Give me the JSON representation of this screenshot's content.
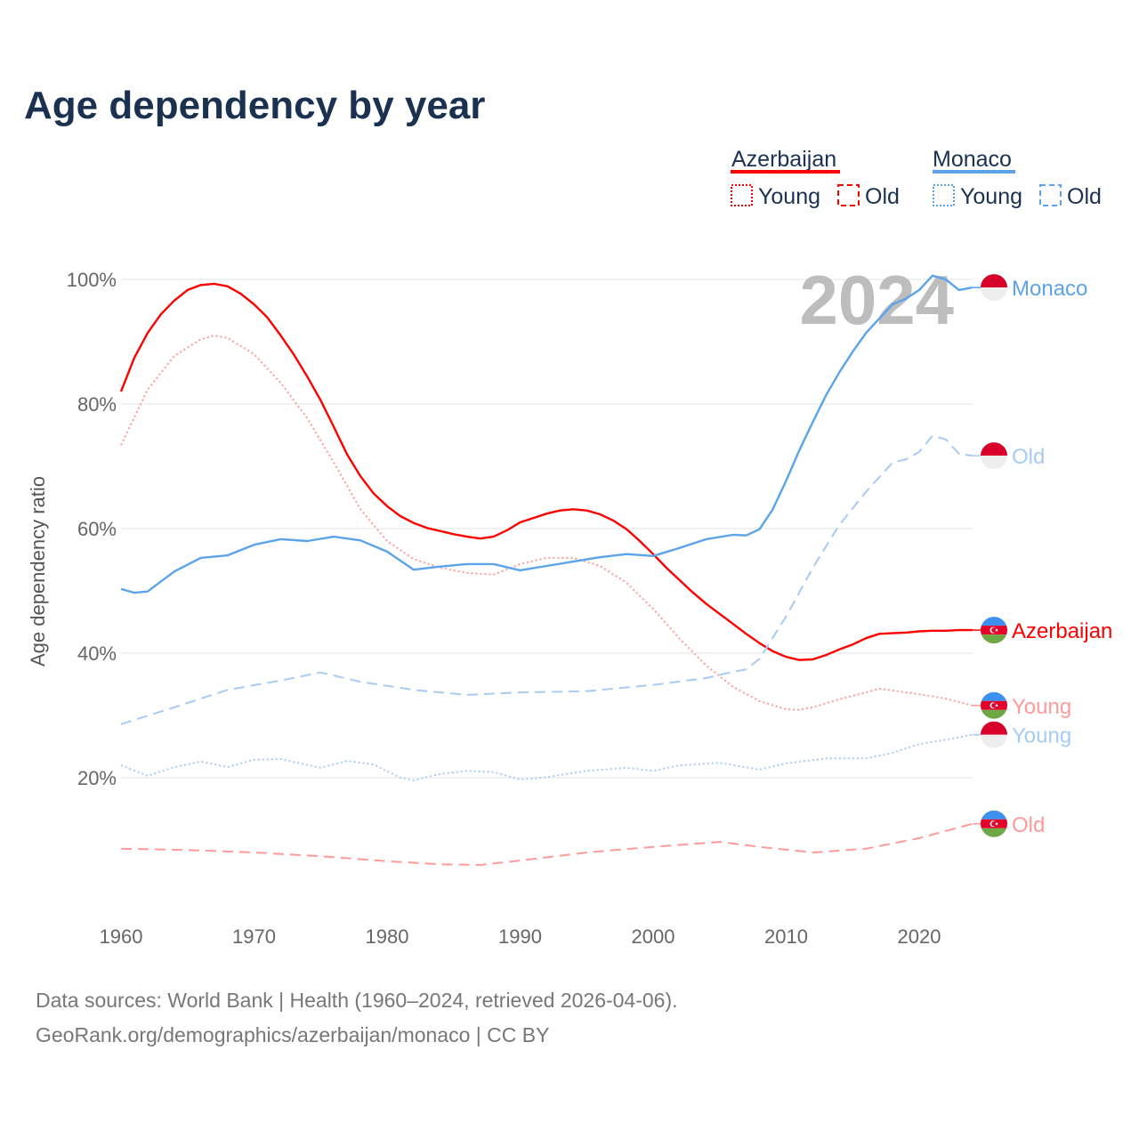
{
  "chart_data": {
    "type": "line",
    "title": "Age dependency by year",
    "xlabel": "",
    "ylabel": "Age dependency ratio",
    "xlim": [
      1960,
      2024
    ],
    "ylim": [
      0,
      100
    ],
    "x_ticks": [
      "1960",
      "1970",
      "1980",
      "1990",
      "2000",
      "2010",
      "2020"
    ],
    "y_ticks": [
      "20%",
      "40%",
      "60%",
      "80%",
      "100%"
    ],
    "year_watermark": "2024",
    "legend": {
      "placement": "top-right",
      "groups": [
        {
          "name": "Azerbaijan",
          "color": "#ff0000",
          "items": [
            "Young",
            "Old"
          ]
        },
        {
          "name": "Monaco",
          "color": "#5ba3ea",
          "items": [
            "Young",
            "Old"
          ]
        }
      ]
    },
    "series": [
      {
        "name": "Azerbaijan",
        "label": "Azerbaijan",
        "country": "az",
        "color": "#ff0000",
        "style": "solid",
        "points": [
          [
            1960,
            82
          ],
          [
            1961,
            87.4
          ],
          [
            1962,
            91.4
          ],
          [
            1963,
            94.4
          ],
          [
            1964,
            96.6
          ],
          [
            1965,
            98.3
          ],
          [
            1966,
            99.1
          ],
          [
            1967,
            99.3
          ],
          [
            1968,
            98.9
          ],
          [
            1969,
            97.7
          ],
          [
            1970,
            96
          ],
          [
            1971,
            93.9
          ],
          [
            1972,
            91
          ],
          [
            1973,
            87.9
          ],
          [
            1974,
            84.4
          ],
          [
            1975,
            80.6
          ],
          [
            1976,
            76.3
          ],
          [
            1977,
            71.9
          ],
          [
            1978,
            68.4
          ],
          [
            1979,
            65.6
          ],
          [
            1980,
            63.6
          ],
          [
            1981,
            62
          ],
          [
            1982,
            60.9
          ],
          [
            1983,
            60.1
          ],
          [
            1984,
            59.6
          ],
          [
            1985,
            59.1
          ],
          [
            1986,
            58.7
          ],
          [
            1987,
            58.4
          ],
          [
            1988,
            58.7
          ],
          [
            1989,
            59.7
          ],
          [
            1990,
            61
          ],
          [
            1991,
            61.7
          ],
          [
            1992,
            62.4
          ],
          [
            1993,
            62.9
          ],
          [
            1994,
            63.1
          ],
          [
            1995,
            62.9
          ],
          [
            1996,
            62.3
          ],
          [
            1997,
            61.3
          ],
          [
            1998,
            59.9
          ],
          [
            1999,
            58
          ],
          [
            2000,
            55.9
          ],
          [
            2001,
            53.7
          ],
          [
            2002,
            51.7
          ],
          [
            2003,
            49.7
          ],
          [
            2004,
            47.9
          ],
          [
            2005,
            46.3
          ],
          [
            2006,
            44.7
          ],
          [
            2007,
            43.1
          ],
          [
            2008,
            41.6
          ],
          [
            2009,
            40.3
          ],
          [
            2010,
            39.4
          ],
          [
            2011,
            38.9
          ],
          [
            2012,
            39
          ],
          [
            2013,
            39.7
          ],
          [
            2014,
            40.6
          ],
          [
            2015,
            41.4
          ],
          [
            2016,
            42.4
          ],
          [
            2017,
            43.1
          ],
          [
            2018,
            43.2
          ],
          [
            2019,
            43.3
          ],
          [
            2020,
            43.5
          ],
          [
            2021,
            43.6
          ],
          [
            2022,
            43.6
          ],
          [
            2023,
            43.7
          ],
          [
            2024,
            43.7
          ]
        ]
      },
      {
        "name": "Azerbaijan Young",
        "label": "Young",
        "country": "az",
        "color": "#ff9a9a",
        "style": "dotted",
        "points": [
          [
            1960,
            73.4
          ],
          [
            1962,
            82.3
          ],
          [
            1964,
            87.7
          ],
          [
            1966,
            90.4
          ],
          [
            1967,
            91
          ],
          [
            1968,
            90.6
          ],
          [
            1970,
            88
          ],
          [
            1972,
            83.4
          ],
          [
            1974,
            77.7
          ],
          [
            1976,
            70.6
          ],
          [
            1978,
            63.1
          ],
          [
            1980,
            58
          ],
          [
            1982,
            55.1
          ],
          [
            1984,
            53.7
          ],
          [
            1986,
            52.9
          ],
          [
            1988,
            52.6
          ],
          [
            1990,
            54.3
          ],
          [
            1992,
            55.3
          ],
          [
            1994,
            55.3
          ],
          [
            1996,
            54
          ],
          [
            1998,
            51.3
          ],
          [
            2000,
            47.1
          ],
          [
            2002,
            42.3
          ],
          [
            2004,
            38
          ],
          [
            2006,
            34.6
          ],
          [
            2008,
            32.3
          ],
          [
            2010,
            31
          ],
          [
            2011,
            30.9
          ],
          [
            2012,
            31.3
          ],
          [
            2014,
            32.6
          ],
          [
            2016,
            33.7
          ],
          [
            2017,
            34.3
          ],
          [
            2020,
            33.4
          ],
          [
            2022,
            32.7
          ],
          [
            2024,
            31.6
          ]
        ]
      },
      {
        "name": "Azerbaijan Old",
        "label": "Old",
        "country": "az",
        "color": "#ff9a9a",
        "style": "dashed",
        "points": [
          [
            1960,
            8.6
          ],
          [
            1965,
            8.4
          ],
          [
            1970,
            8
          ],
          [
            1975,
            7.4
          ],
          [
            1980,
            6.6
          ],
          [
            1984,
            6.1
          ],
          [
            1987,
            6
          ],
          [
            1990,
            6.7
          ],
          [
            1995,
            8
          ],
          [
            2000,
            8.9
          ],
          [
            2005,
            9.7
          ],
          [
            2008,
            8.9
          ],
          [
            2012,
            8
          ],
          [
            2016,
            8.6
          ],
          [
            2020,
            10.3
          ],
          [
            2024,
            12.6
          ]
        ]
      },
      {
        "name": "Monaco",
        "label": "Monaco",
        "country": "mc",
        "color": "#5ba3ea",
        "style": "solid",
        "points": [
          [
            1960,
            50.3
          ],
          [
            1961,
            49.7
          ],
          [
            1962,
            49.9
          ],
          [
            1964,
            53.1
          ],
          [
            1966,
            55.3
          ],
          [
            1968,
            55.7
          ],
          [
            1970,
            57.4
          ],
          [
            1972,
            58.3
          ],
          [
            1974,
            58
          ],
          [
            1976,
            58.7
          ],
          [
            1978,
            58.1
          ],
          [
            1980,
            56.3
          ],
          [
            1982,
            53.4
          ],
          [
            1984,
            53.9
          ],
          [
            1986,
            54.3
          ],
          [
            1988,
            54.3
          ],
          [
            1990,
            53.3
          ],
          [
            1992,
            54
          ],
          [
            1994,
            54.7
          ],
          [
            1996,
            55.4
          ],
          [
            1998,
            55.9
          ],
          [
            2000,
            55.6
          ],
          [
            2002,
            56.9
          ],
          [
            2004,
            58.3
          ],
          [
            2006,
            59
          ],
          [
            2007,
            58.9
          ],
          [
            2008,
            59.9
          ],
          [
            2009,
            63.1
          ],
          [
            2010,
            67.7
          ],
          [
            2011,
            72.6
          ],
          [
            2012,
            77.1
          ],
          [
            2013,
            81.4
          ],
          [
            2014,
            85.1
          ],
          [
            2015,
            88.4
          ],
          [
            2016,
            91.4
          ],
          [
            2017,
            93.7
          ],
          [
            2018,
            96
          ],
          [
            2019,
            96.9
          ],
          [
            2020,
            98.3
          ],
          [
            2021,
            100.6
          ],
          [
            2022,
            100
          ],
          [
            2023,
            98.3
          ],
          [
            2024,
            98.7
          ]
        ]
      },
      {
        "name": "Monaco Old",
        "label": "Old",
        "country": "mc",
        "color": "#a7cbf2",
        "style": "dashed",
        "points": [
          [
            1960,
            28.6
          ],
          [
            1964,
            31.3
          ],
          [
            1968,
            34.1
          ],
          [
            1972,
            35.6
          ],
          [
            1975,
            36.9
          ],
          [
            1978,
            35.4
          ],
          [
            1982,
            34.1
          ],
          [
            1986,
            33.3
          ],
          [
            1990,
            33.7
          ],
          [
            1995,
            33.9
          ],
          [
            2000,
            34.9
          ],
          [
            2004,
            36
          ],
          [
            2006,
            37
          ],
          [
            2007,
            37.4
          ],
          [
            2008,
            39.1
          ],
          [
            2010,
            45.9
          ],
          [
            2012,
            53.7
          ],
          [
            2014,
            60.6
          ],
          [
            2016,
            65.9
          ],
          [
            2018,
            70.6
          ],
          [
            2019,
            71.1
          ],
          [
            2020,
            72.3
          ],
          [
            2021,
            74.9
          ],
          [
            2022,
            74.3
          ],
          [
            2023,
            72
          ],
          [
            2024,
            71.7
          ]
        ]
      },
      {
        "name": "Monaco Young",
        "label": "Young",
        "country": "mc",
        "color": "#a7cbf2",
        "style": "dotted",
        "points": [
          [
            1960,
            22
          ],
          [
            1962,
            20.3
          ],
          [
            1964,
            21.7
          ],
          [
            1966,
            22.6
          ],
          [
            1968,
            21.7
          ],
          [
            1970,
            22.9
          ],
          [
            1972,
            23
          ],
          [
            1975,
            21.6
          ],
          [
            1977,
            22.7
          ],
          [
            1979,
            22.1
          ],
          [
            1981,
            20
          ],
          [
            1982,
            19.6
          ],
          [
            1984,
            20.6
          ],
          [
            1986,
            21.1
          ],
          [
            1988,
            20.9
          ],
          [
            1990,
            19.7
          ],
          [
            1992,
            20.1
          ],
          [
            1995,
            21.1
          ],
          [
            1998,
            21.6
          ],
          [
            2000,
            21.1
          ],
          [
            2002,
            22
          ],
          [
            2005,
            22.4
          ],
          [
            2008,
            21.3
          ],
          [
            2010,
            22.3
          ],
          [
            2013,
            23.1
          ],
          [
            2016,
            23.1
          ],
          [
            2018,
            24
          ],
          [
            2020,
            25.4
          ],
          [
            2022,
            26.1
          ],
          [
            2024,
            26.9
          ]
        ]
      }
    ]
  },
  "footer": {
    "line1": "Data sources: World Bank | Health (1960–2024, retrieved 2026-04-06).",
    "line2": "GeoRank.org/demographics/azerbaijan/monaco | CC BY"
  }
}
